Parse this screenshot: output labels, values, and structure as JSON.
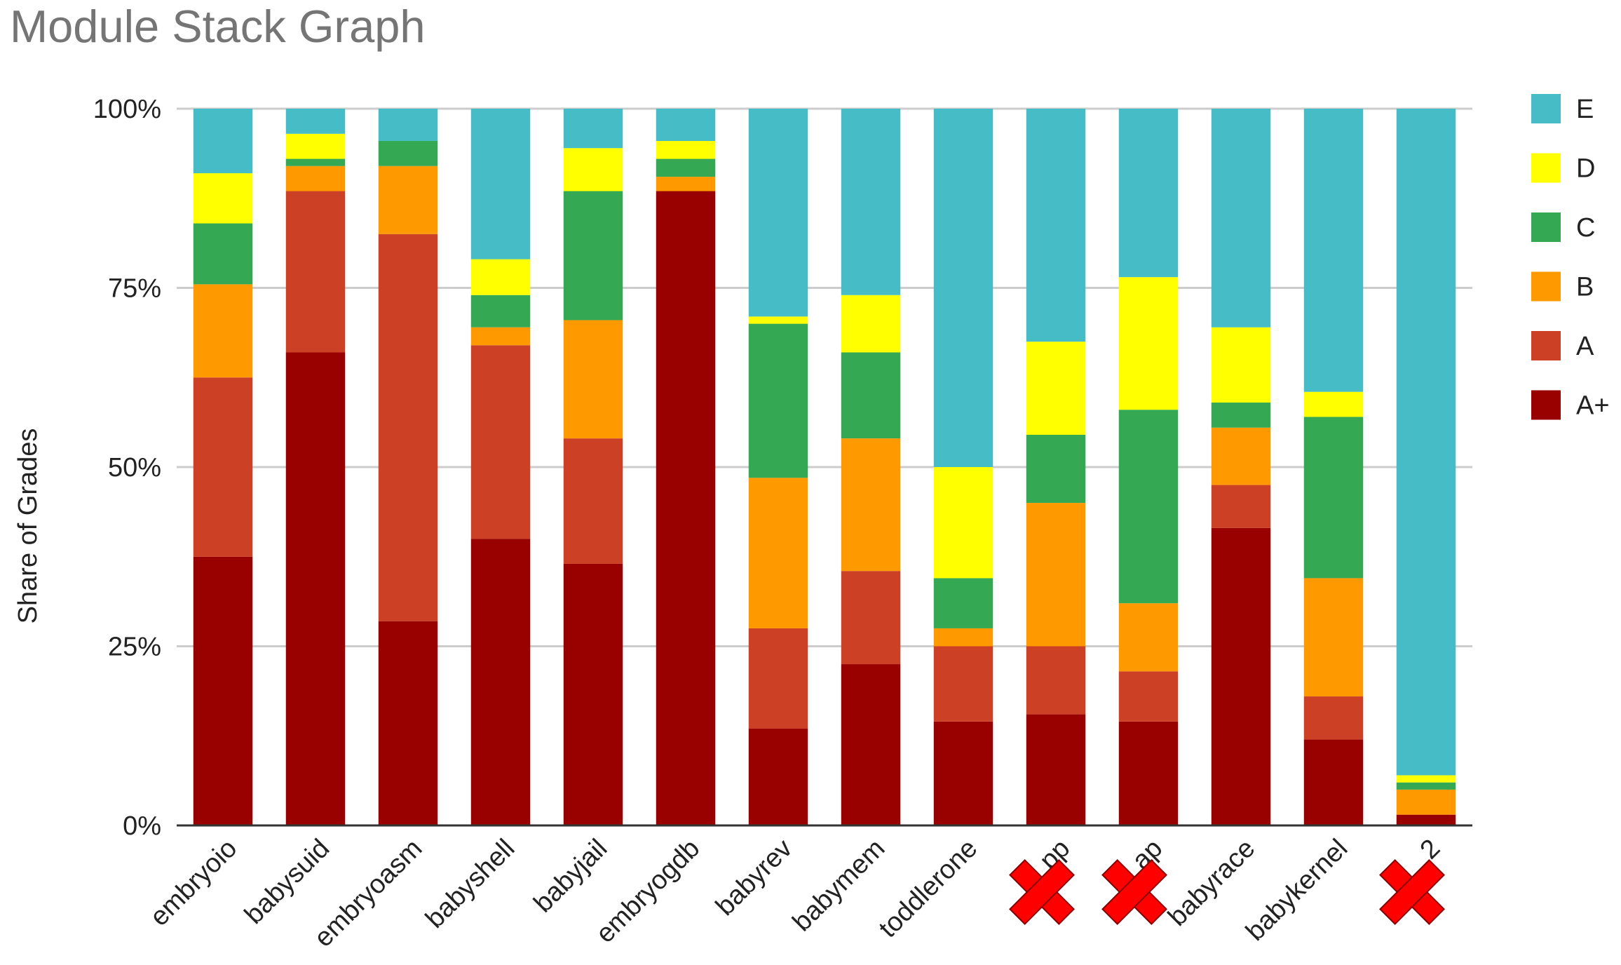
{
  "chart_data": {
    "type": "bar",
    "stacked": true,
    "normalized": true,
    "title": "Module Stack Graph",
    "ylabel": "Share of Grades",
    "xlabel": "",
    "ylim": [
      0,
      100
    ],
    "yticks": [
      "0%",
      "25%",
      "50%",
      "75%",
      "100%"
    ],
    "grid": true,
    "legend_position": "right",
    "categories": [
      "embryoio",
      "babysuid",
      "embryoasm",
      "babyshell",
      "babyjail",
      "embryogdb",
      "babyrev",
      "babymem",
      "toddlerone",
      "",
      "",
      "babyrace",
      "babykernel",
      ""
    ],
    "crossed_out_categories": [
      9,
      10,
      13
    ],
    "visible_label_fragments": {
      "9": "pp",
      "10": "ap",
      "13": "2"
    },
    "series": [
      {
        "name": "A+",
        "color": "#990000",
        "values": [
          37.5,
          66,
          28.5,
          40,
          36.5,
          88.5,
          13.5,
          22.5,
          14.5,
          15.5,
          14.5,
          41.5,
          12,
          1.5
        ]
      },
      {
        "name": "A",
        "color": "#cc4125",
        "values": [
          25,
          22.5,
          54,
          27,
          17.5,
          0,
          14,
          13,
          10.5,
          9.5,
          7,
          6,
          6,
          0
        ]
      },
      {
        "name": "B",
        "color": "#ff9900",
        "values": [
          13,
          3.5,
          9.5,
          2.5,
          16.5,
          2,
          21,
          18.5,
          2.5,
          20,
          9.5,
          8,
          16.5,
          3.5
        ]
      },
      {
        "name": "C",
        "color": "#34a853",
        "values": [
          8.5,
          1,
          3.5,
          4.5,
          18,
          2.5,
          21.5,
          12,
          7,
          9.5,
          27,
          3.5,
          22.5,
          1
        ]
      },
      {
        "name": "D",
        "color": "#ffff00",
        "values": [
          7,
          3.5,
          0,
          5,
          6,
          2.5,
          1,
          8,
          15.5,
          13,
          18.5,
          10.5,
          3.5,
          1
        ]
      },
      {
        "name": "E",
        "color": "#46bdc6",
        "values": [
          9,
          3.5,
          4.5,
          21,
          5.5,
          4.5,
          29,
          26,
          50,
          32.5,
          23.5,
          30.5,
          39.5,
          93
        ]
      }
    ]
  }
}
